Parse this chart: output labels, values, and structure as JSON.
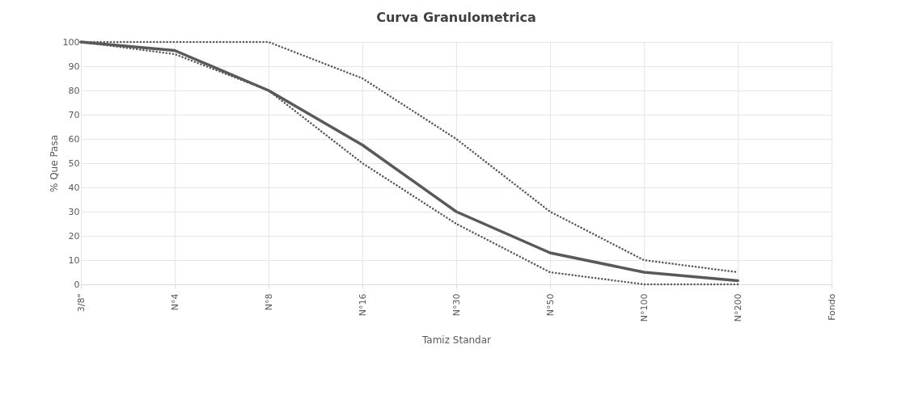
{
  "chart_data": {
    "type": "line",
    "title": "Curva Granulometrica",
    "xlabel": "Tamiz Standar",
    "ylabel": "% Que Pasa",
    "categories": [
      "3/8\"",
      "N°4",
      "N°8",
      "N°16",
      "N°30",
      "N°50",
      "N°100",
      "N°200",
      "Fondo"
    ],
    "series": [
      {
        "color": "#595959",
        "line_style": "dotted",
        "values": [
          100,
          100,
          100,
          85,
          60,
          30,
          10,
          5,
          null
        ]
      },
      {
        "color": "#595959",
        "line_style": "dotted",
        "values": [
          100,
          95,
          80,
          50,
          25,
          5,
          0,
          0,
          null
        ]
      },
      {
        "color": "#595959",
        "line_style": "solid",
        "values": [
          100,
          96.5,
          80,
          57.5,
          30,
          13,
          5,
          1.5,
          null
        ]
      }
    ],
    "ylim": [
      0,
      100
    ],
    "yticks": [
      0,
      10,
      20,
      30,
      40,
      50,
      60,
      70,
      80,
      90,
      100
    ],
    "grid": true,
    "marker": "none"
  }
}
